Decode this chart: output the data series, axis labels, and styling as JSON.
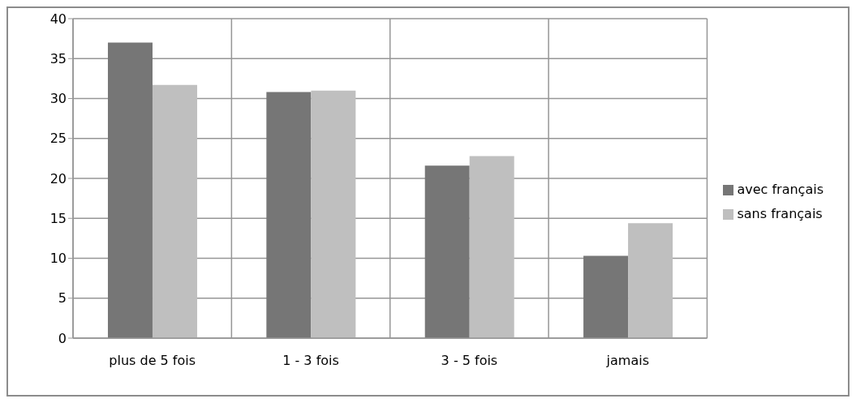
{
  "chart_data": {
    "type": "bar",
    "categories": [
      "plus de 5 fois",
      "1 - 3 fois",
      "3 - 5 fois",
      "jamais"
    ],
    "series": [
      {
        "name": "avec français",
        "color": "#767676",
        "values": [
          37.0,
          30.8,
          21.6,
          10.3
        ]
      },
      {
        "name": "sans français",
        "color": "#bfbfbf",
        "values": [
          31.7,
          31.0,
          22.8,
          14.4
        ]
      }
    ],
    "ylim": [
      0,
      40
    ],
    "yticks": [
      0,
      5,
      10,
      15,
      20,
      25,
      30,
      35,
      40
    ],
    "grid": true,
    "legend": "right"
  }
}
